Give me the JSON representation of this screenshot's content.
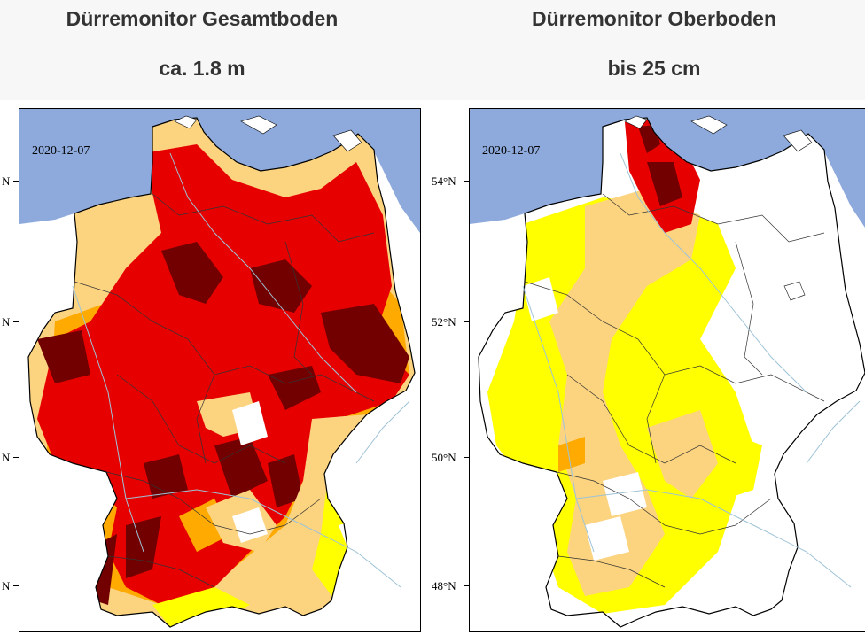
{
  "left_map": {
    "title": "Dürremonitor Gesamtboden",
    "subtitle": "ca. 1.8 m",
    "date": "2020-12-07",
    "lat_labels": [
      "N",
      "N",
      "N",
      "N"
    ]
  },
  "right_map": {
    "title": "Dürremonitor Oberboden",
    "subtitle": "bis 25 cm",
    "date": "2020-12-07",
    "lat_labels": [
      "54°N",
      "52°N",
      "50°N",
      "48°N"
    ]
  },
  "colors": {
    "sea": "#8eaadc",
    "land_no_drought": "#ffffff",
    "abnormally_dry": "#ffff00",
    "moderate_drought": "#fcd37f",
    "severe_drought": "#ffaa00",
    "extreme_drought": "#e60000",
    "exceptional_drought": "#730000",
    "rivers": "#9ec3d6",
    "borders": "#000000"
  },
  "icons": {
    "map_left": "germany-drought-map",
    "map_right": "germany-drought-map"
  }
}
